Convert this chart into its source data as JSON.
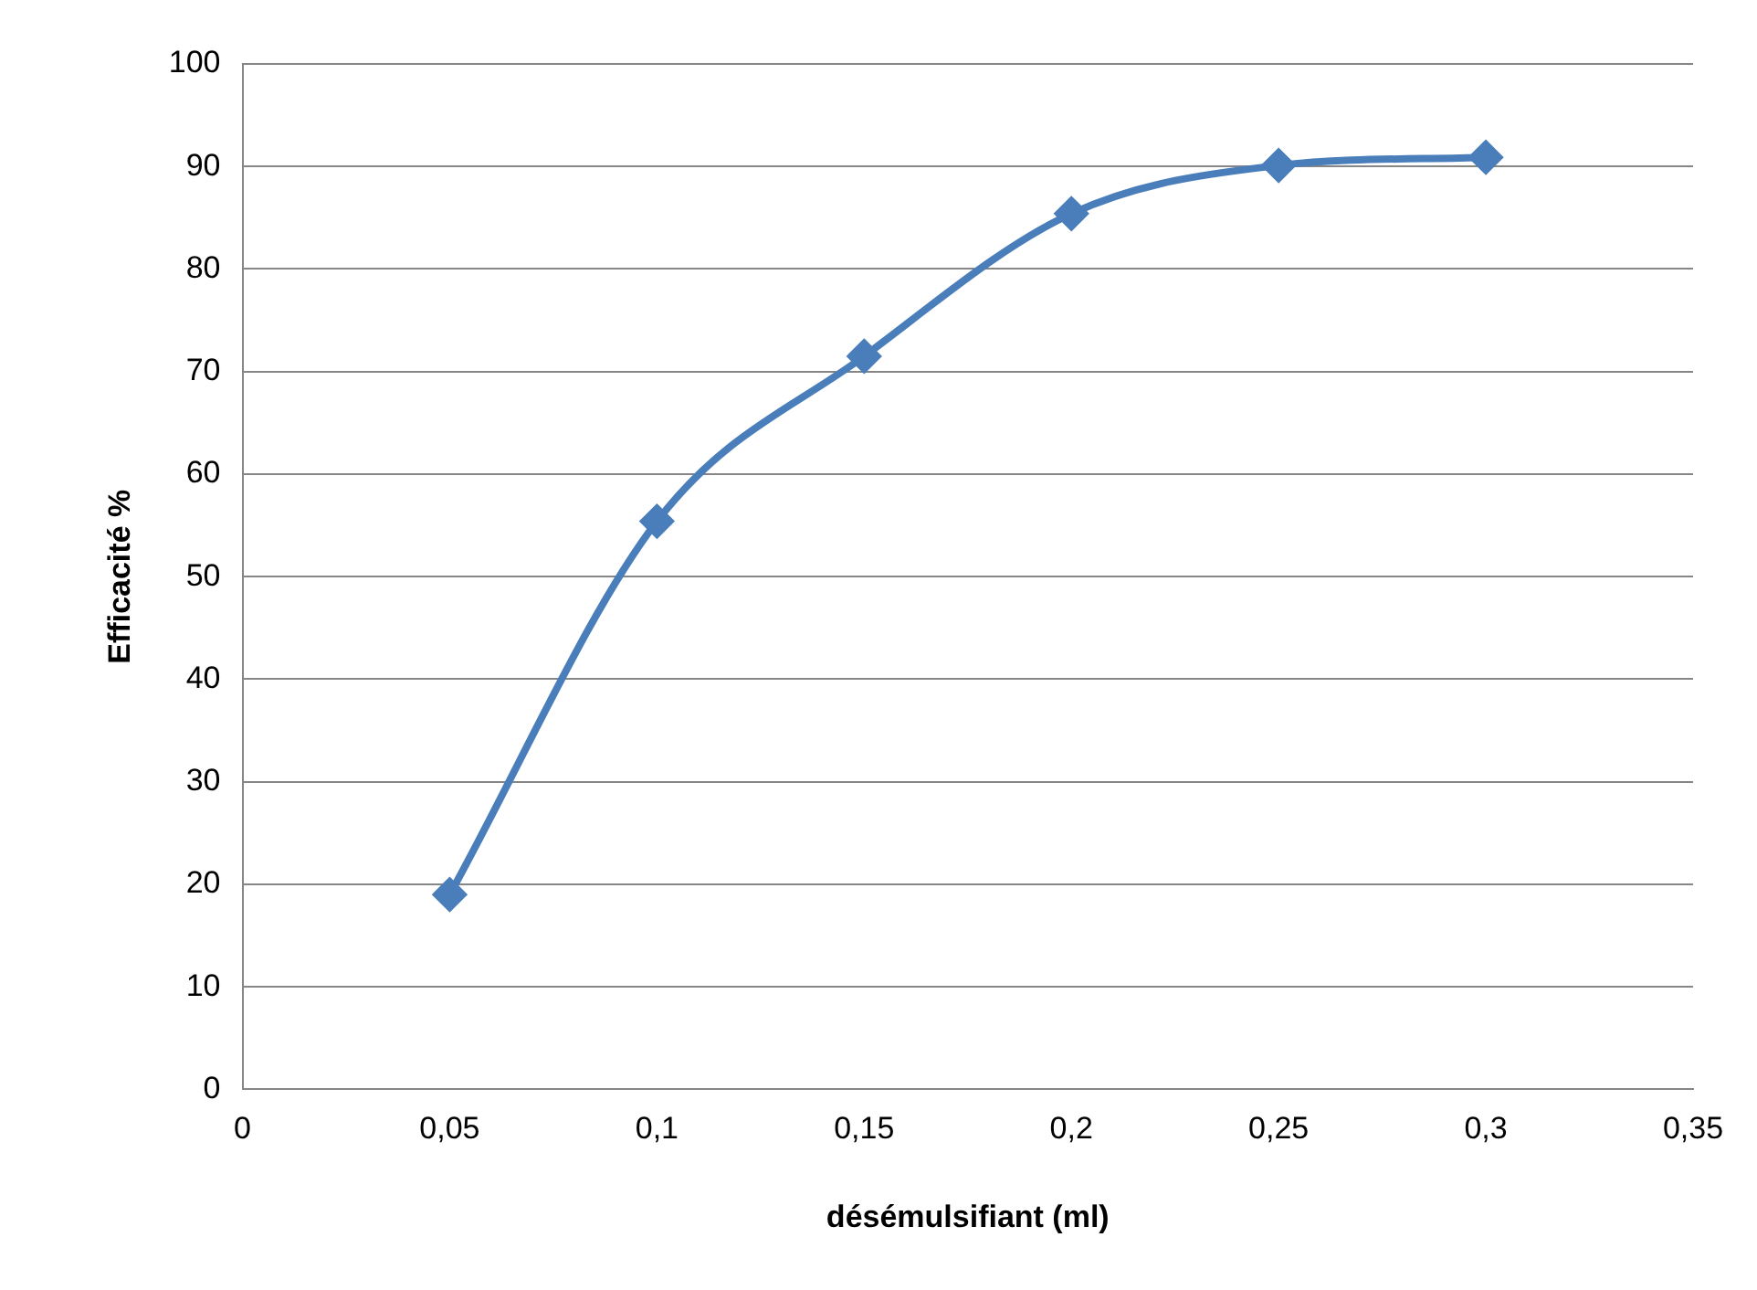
{
  "chart_data": {
    "type": "line",
    "xlabel": "désémulsifiant (ml)",
    "ylabel": "Efficacité %",
    "x": [
      0.05,
      0.1,
      0.15,
      0.2,
      0.25,
      0.3
    ],
    "series": [
      {
        "color": "#4a7ebb",
        "values": [
          19,
          55.4,
          71.5,
          85.4,
          90.1,
          90.9
        ]
      }
    ],
    "xlim": [
      0,
      0.35
    ],
    "xticks": [
      0,
      {
        "value": 0.05,
        "label": "0,05"
      },
      {
        "value": 0.1,
        "label": "0,1"
      },
      {
        "value": 0.15,
        "label": "0,15"
      },
      {
        "value": 0.2,
        "label": "0,2"
      },
      {
        "value": 0.25,
        "label": "0,25"
      },
      {
        "value": 0.3,
        "label": "0,3"
      },
      {
        "value": 0.35,
        "label": "0,35"
      }
    ],
    "ylim": [
      0,
      100
    ],
    "yticks": [
      0,
      10,
      20,
      30,
      40,
      50,
      60,
      70,
      80,
      90,
      100
    ],
    "grid": "y",
    "legend": false,
    "marker": "diamond",
    "line_style": "solid"
  }
}
